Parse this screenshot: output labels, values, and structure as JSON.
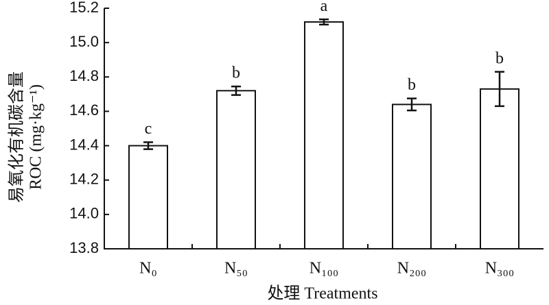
{
  "chart_data": {
    "type": "bar",
    "y_label_lines": [
      "易氧化有机碳含量",
      "ROC (mg·kg⁻¹)"
    ],
    "x_label": "处理 Treatments",
    "categories": [
      "N₀",
      "N₅₀",
      "N₁₀₀",
      "N₂₀₀",
      "N₃₀₀"
    ],
    "values": [
      14.4,
      14.72,
      15.12,
      14.64,
      14.73
    ],
    "errors": [
      0.02,
      0.025,
      0.015,
      0.035,
      0.1
    ],
    "significance": [
      "c",
      "b",
      "a",
      "b",
      "b"
    ],
    "color": "#ffffff",
    "ylim": [
      13.8,
      15.2
    ],
    "yticks": [
      {
        "value": 13.8,
        "label": "13.8"
      },
      {
        "value": 14,
        "label": "14.0"
      },
      14.2,
      14.4,
      14.6,
      14.8,
      {
        "value": 15,
        "label": "15.0"
      },
      15.2
    ]
  }
}
